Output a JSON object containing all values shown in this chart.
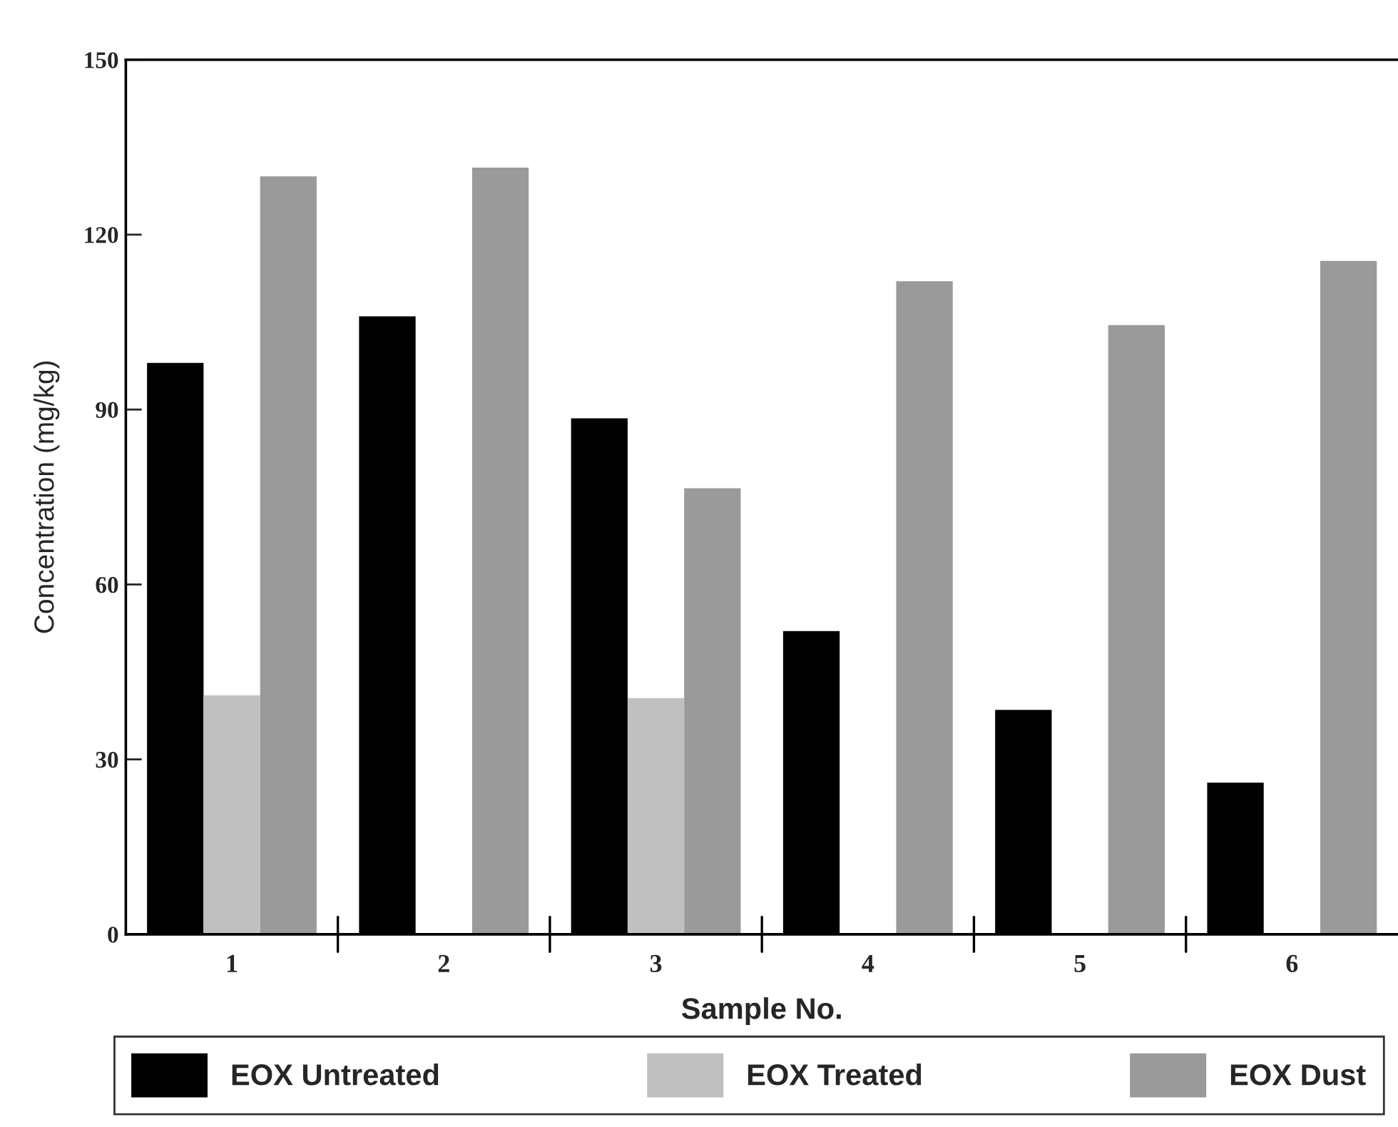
{
  "chart_data": {
    "type": "bar",
    "xlabel": "Sample No.",
    "ylabel": "Concentration (mg/kg)",
    "categories": [
      "1",
      "2",
      "3",
      "4",
      "5",
      "6"
    ],
    "series": [
      {
        "name": "EOX Untreated",
        "color": "#000000",
        "values": [
          98,
          106,
          88.5,
          52,
          38.5,
          26
        ]
      },
      {
        "name": "EOX Treated",
        "color": "#c0c0c0",
        "values": [
          41,
          null,
          40.5,
          null,
          null,
          null
        ]
      },
      {
        "name": "EOX Dust",
        "color": "#9a9a9a",
        "values": [
          130,
          131.5,
          76.5,
          112,
          104.5,
          115.5
        ]
      }
    ],
    "ylim": [
      0,
      150
    ],
    "yticks": [
      0,
      30,
      60,
      90,
      120,
      150
    ],
    "grid": false,
    "legend": "bottom"
  }
}
